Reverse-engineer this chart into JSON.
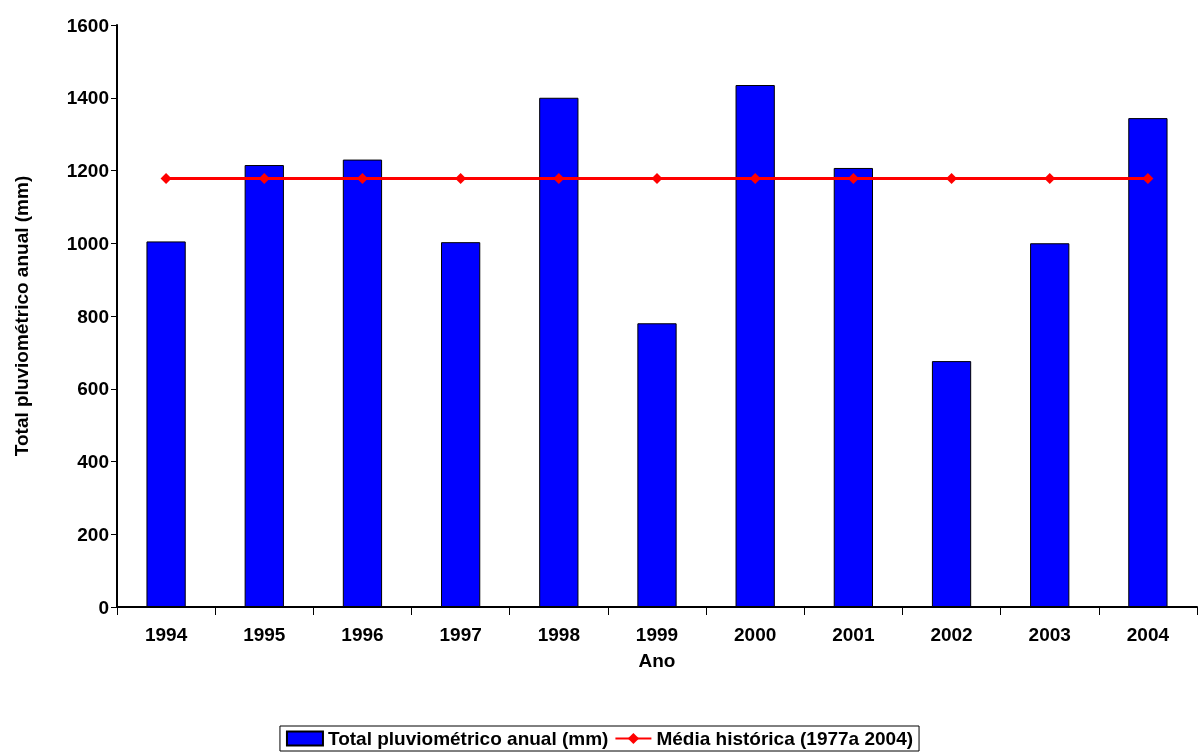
{
  "chart_data": {
    "type": "bar",
    "xlabel": "Ano",
    "ylabel": "Total pluviométrico anual (mm)",
    "categories": [
      "1994",
      "1995",
      "1996",
      "1997",
      "1998",
      "1999",
      "2000",
      "2001",
      "2002",
      "2003",
      "2004"
    ],
    "series": [
      {
        "name": "Total pluviométrico anual (mm)",
        "color": "#0000ff",
        "values": [
          1005,
          1215,
          1230,
          1003,
          1400,
          780,
          1435,
          1207,
          676,
          1000,
          1344
        ]
      },
      {
        "name": "Média histórica (1977a 2004)",
        "type": "line",
        "color": "#ff0000",
        "marker": "diamond",
        "values": [
          1178,
          1178,
          1178,
          1178,
          1178,
          1178,
          1178,
          1178,
          1178,
          1178,
          1178
        ]
      }
    ],
    "ylim": [
      0,
      1600
    ],
    "yticks": [
      0,
      200,
      400,
      600,
      800,
      1000,
      1200,
      1400,
      1600
    ],
    "grid": false,
    "legend": "bottom"
  }
}
